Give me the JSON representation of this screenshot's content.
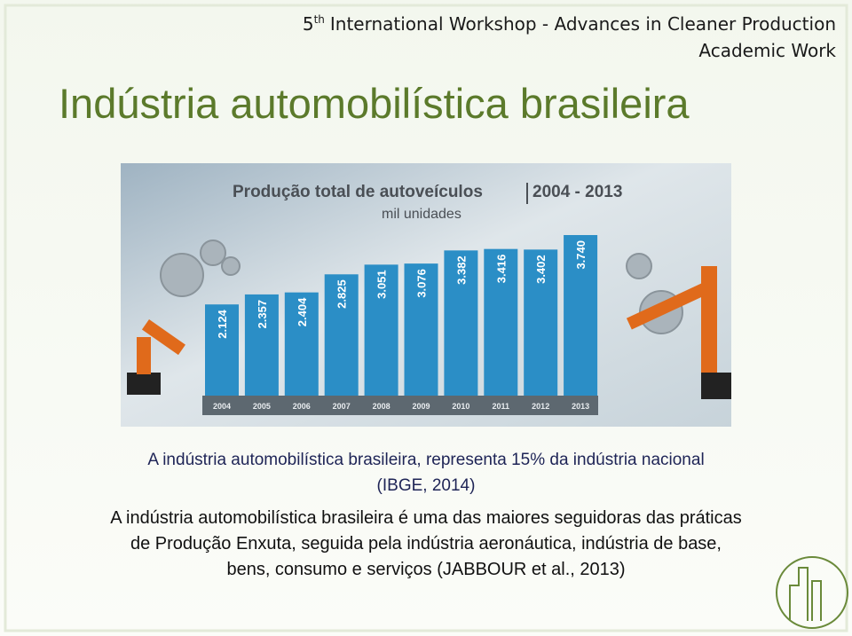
{
  "header": {
    "edition": "5",
    "edition_suffix": "th",
    "workshop": "International Workshop - Advances in Cleaner Production",
    "track": "Academic Work"
  },
  "title": "Indústria automobilística brasileira",
  "chart_data": {
    "type": "bar",
    "title": "Produção total de autoveículos",
    "period": "2004 - 2013",
    "subtitle": "mil unidades",
    "categories": [
      "2004",
      "2005",
      "2006",
      "2007",
      "2008",
      "2009",
      "2010",
      "2011",
      "2012",
      "2013"
    ],
    "values": [
      2124,
      2357,
      2404,
      2825,
      3051,
      3076,
      3382,
      3416,
      3402,
      3740
    ],
    "value_labels": [
      "2.124",
      "2.357",
      "2.404",
      "2.825",
      "3.051",
      "3.076",
      "3.382",
      "3.416",
      "3.402",
      "3.740"
    ],
    "color": "#2b8ec6"
  },
  "body": {
    "paragraph_1": [
      "A indústria automobilística brasileira, representa  15% da indústria nacional",
      "(IBGE, 2014)"
    ],
    "paragraph_2": [
      "A indústria automobilística brasileira é uma das maiores seguidoras das práticas",
      "de Produção Enxuta, seguida pela indústria aeronáutica, indústria de base,",
      "bens, consumo e serviços (JABBOUR et al., 2013)"
    ]
  }
}
